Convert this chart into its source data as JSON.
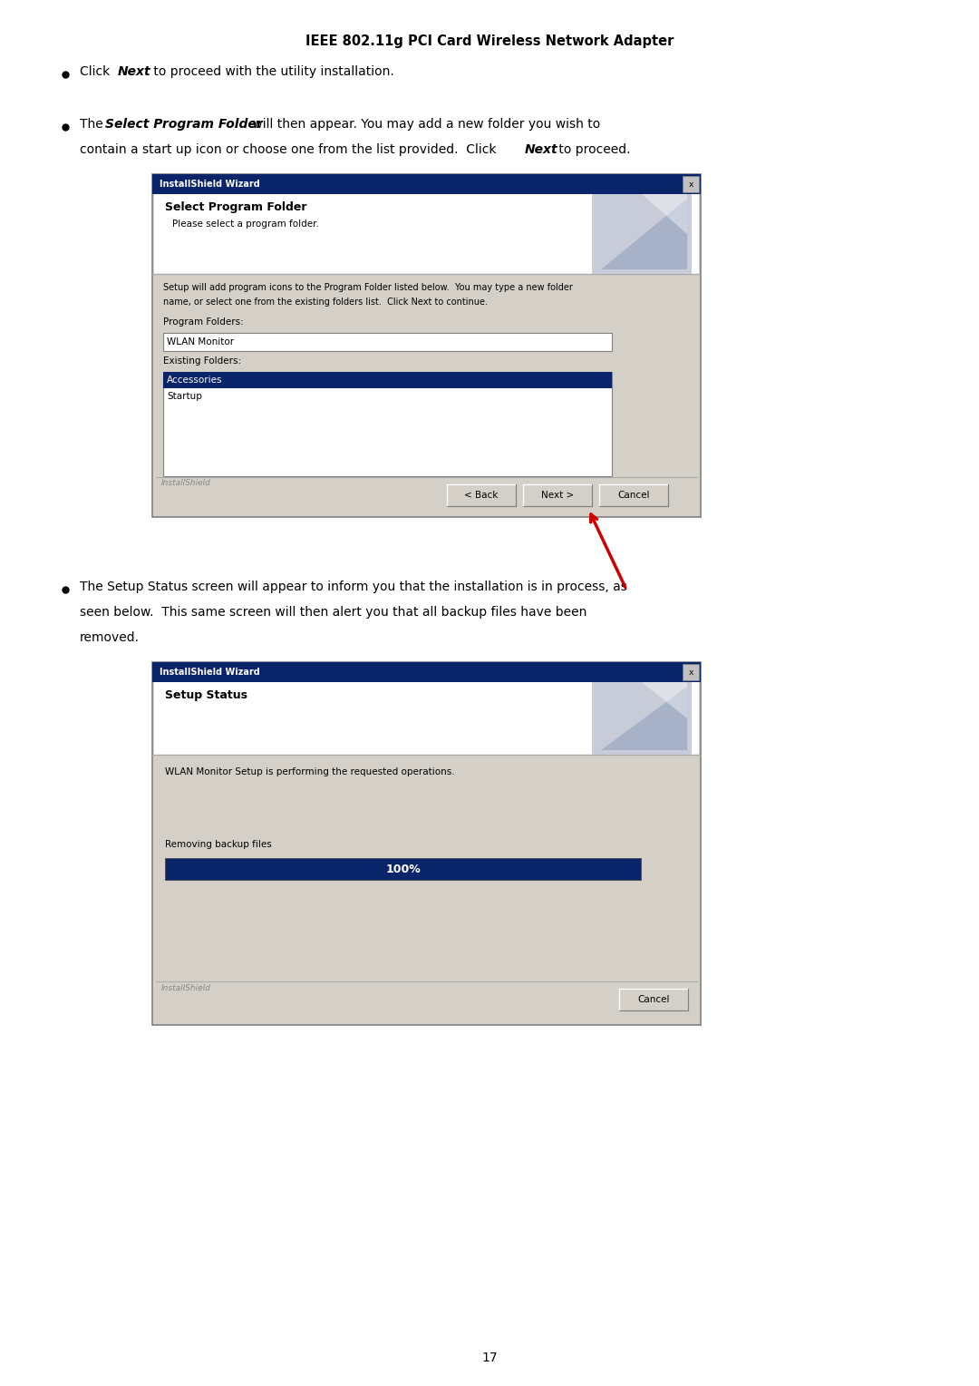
{
  "bg_color": "#ffffff",
  "page_width": 10.8,
  "page_height": 15.28,
  "header_text": "IEEE 802.11g PCI Card Wireless Network Adapter",
  "page_number": "17",
  "dialog1_title": "InstallShield Wizard",
  "dialog1_header": "Select Program Folder",
  "dialog1_sub": "Please select a program folder.",
  "dialog1_desc1": "Setup will add program icons to the Program Folder listed below.  You may type a new folder",
  "dialog1_desc2": "name, or select one from the existing folders list.  Click Next to continue.",
  "dialog1_label1": "Program Folders:",
  "dialog1_input": "WLAN Monitor",
  "dialog1_label2": "Existing Folders:",
  "dialog1_folder1": "Accessories",
  "dialog1_folder2": "Startup",
  "dialog1_btn1": "< Back",
  "dialog1_btn2": "Next >",
  "dialog1_btn3": "Cancel",
  "dialog1_installshield": "InstallShield",
  "dialog2_title": "InstallShield Wizard",
  "dialog2_header": "Setup Status",
  "dialog2_desc": "WLAN Monitor Setup is performing the requested operations.",
  "dialog2_label": "Removing backup files",
  "dialog2_progress": "100%",
  "dialog2_btn": "Cancel",
  "dialog2_installshield": "InstallShield",
  "dialog_bg": "#d4d0c8",
  "dialog_white": "#ffffff",
  "title_bar_bg": "#0a246a",
  "title_bar_text": "#ffffff",
  "selected_row_bg": "#0a246a",
  "progress_bar_bg": "#0a246a",
  "button_bg": "#d4d0c8",
  "text_dark": "#000000",
  "text_gray": "#888888",
  "arrow_color": "#cc0000",
  "border_color": "#808080"
}
